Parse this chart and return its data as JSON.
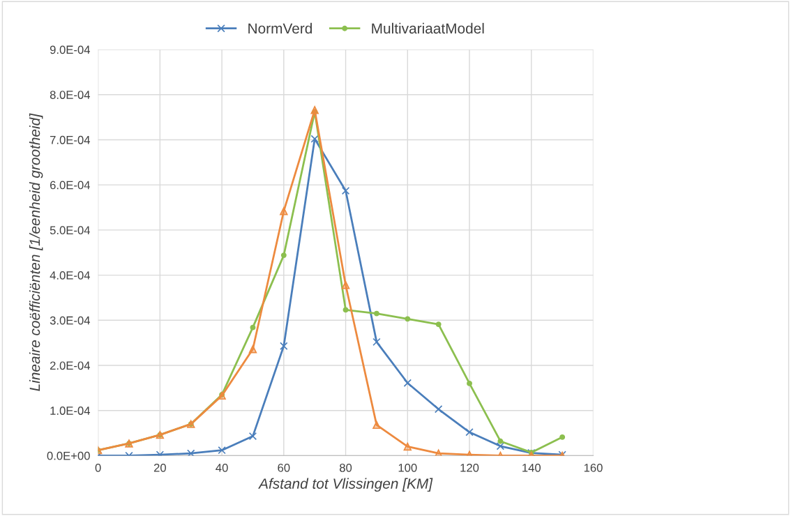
{
  "chart_data": {
    "type": "line",
    "xlabel": "Afstand tot Vlissingen [KM]",
    "ylabel": "Lineaire coëfficiënten [1/eenheid grootheid]",
    "x": [
      0,
      10,
      20,
      30,
      40,
      50,
      60,
      70,
      80,
      90,
      100,
      110,
      120,
      130,
      140,
      150
    ],
    "series": [
      {
        "name": "NormVerd",
        "color": "#4a7ebb",
        "marker": "cross",
        "values": [
          0.0,
          0.0,
          2e-06,
          5e-06,
          1.2e-05,
          4.3e-05,
          0.000243,
          0.000702,
          0.000587,
          0.000252,
          0.000161,
          0.000103,
          5.2e-05,
          2.1e-05,
          6e-06,
          2e-06
        ]
      },
      {
        "name": "MultivariaatModel",
        "color": "#8cbf4f",
        "marker": "circle",
        "values": [
          1.2e-05,
          2.7e-05,
          4.6e-05,
          7e-05,
          0.000135,
          0.000284,
          0.000444,
          0.000762,
          0.000323,
          0.000315,
          0.000303,
          0.000291,
          0.00016,
          3.2e-05,
          7e-06,
          4.1e-05
        ]
      },
      {
        "color": "#ed8a3f",
        "marker": "triangle",
        "values": [
          1.2e-05,
          2.7e-05,
          4.6e-05,
          7e-05,
          0.000133,
          0.000236,
          0.000542,
          0.000766,
          0.000378,
          6.8e-05,
          2e-05,
          5e-06,
          2e-06,
          0.0,
          0.0,
          0.0
        ]
      }
    ],
    "xlim": [
      0,
      160
    ],
    "xticks": [
      0,
      20,
      40,
      60,
      80,
      100,
      120,
      140,
      160
    ],
    "ylim": [
      0,
      0.0009
    ],
    "yticks": [
      {
        "value": 0,
        "label": "0.0E+00"
      },
      {
        "value": 0.0001,
        "label": "1.0E-04"
      },
      {
        "value": 0.0002,
        "label": "2.0E-04"
      },
      {
        "value": 0.0003,
        "label": "3.0E-04"
      },
      {
        "value": 0.0004,
        "label": "4.0E-04"
      },
      {
        "value": 0.0005,
        "label": "5.0E-04"
      },
      {
        "value": 0.0006,
        "label": "6.0E-04"
      },
      {
        "value": 0.0007,
        "label": "7.0E-04"
      },
      {
        "value": 0.0008,
        "label": "8.0E-04"
      },
      {
        "value": 0.0009,
        "label": "9.0E-04"
      }
    ],
    "grid": true,
    "legend": "top"
  }
}
